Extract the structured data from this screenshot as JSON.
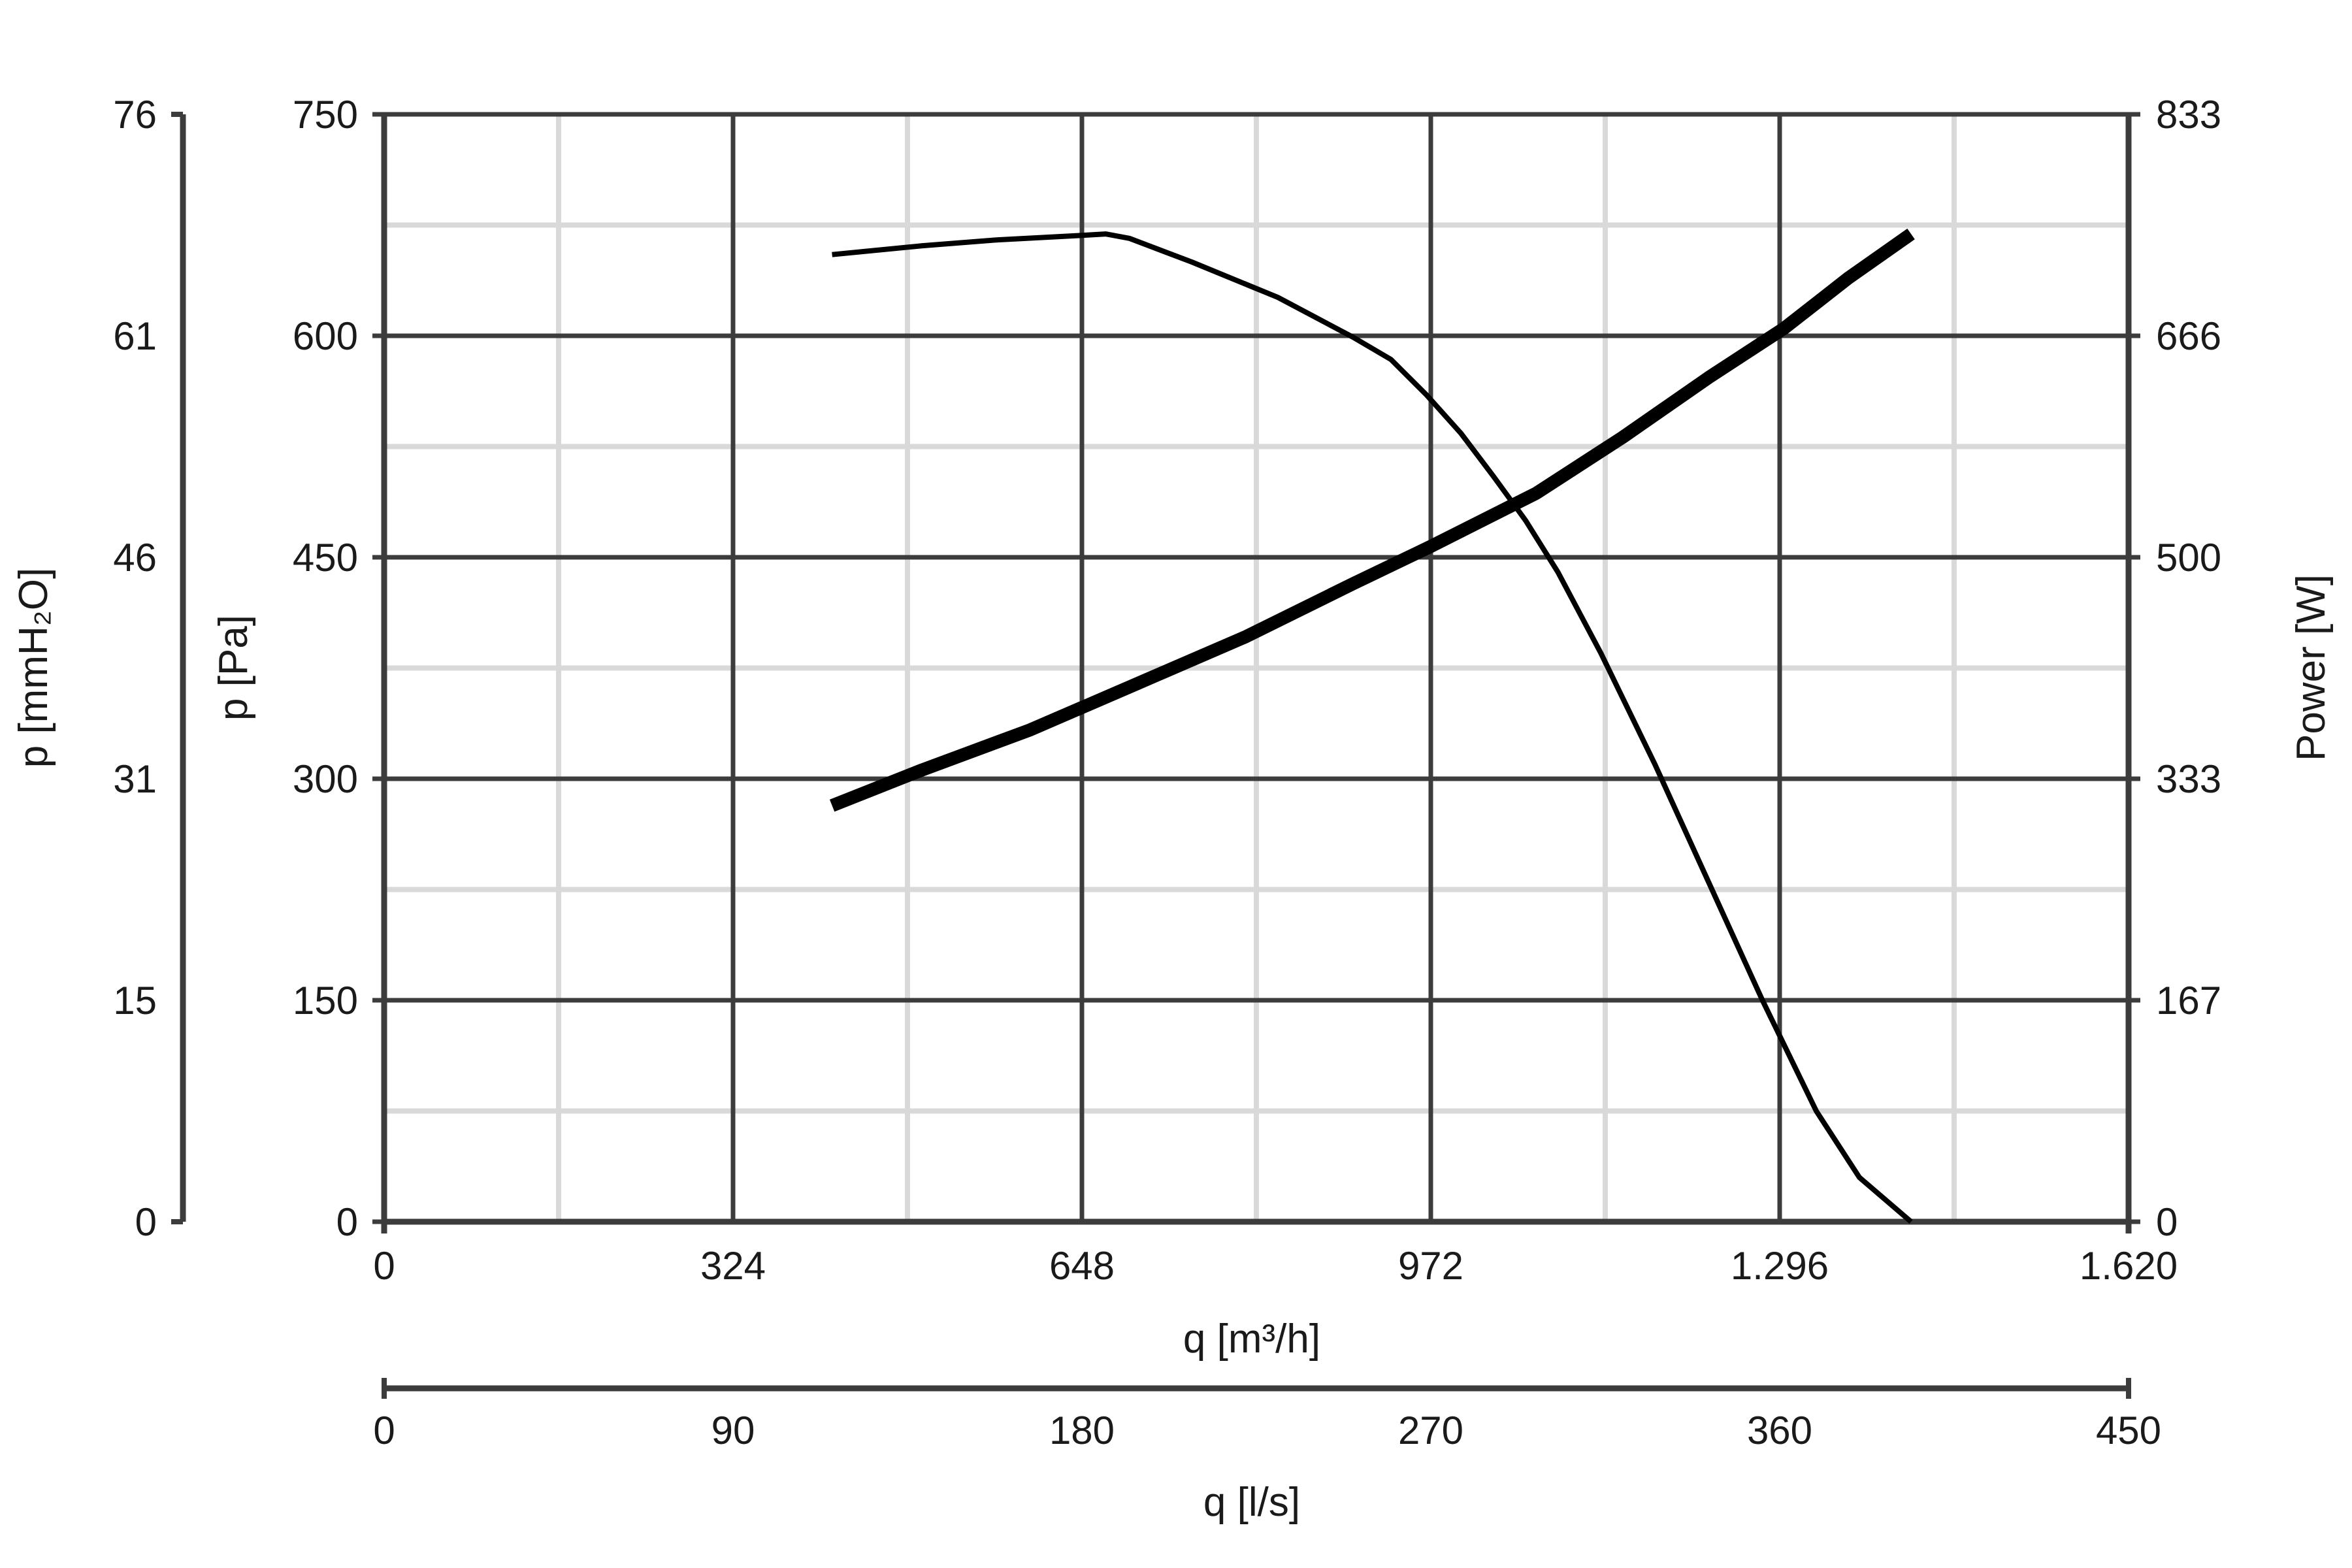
{
  "chart_data": {
    "type": "line",
    "x_axis": {
      "label": "q [m³/h]",
      "range": [
        0,
        1620
      ],
      "ticks": [
        "0",
        "324",
        "648",
        "972",
        "1.296",
        "1.620"
      ]
    },
    "x2_axis": {
      "label": "q [l/s]",
      "range": [
        0,
        450
      ],
      "ticks": [
        "0",
        "90",
        "180",
        "270",
        "360",
        "450"
      ]
    },
    "y_axis": {
      "label": "p [Pa]",
      "range": [
        0,
        750
      ],
      "ticks": [
        "0",
        "150",
        "300",
        "450",
        "600",
        "750"
      ]
    },
    "y_outer_axis": {
      "label": "p [mmH₂O]",
      "range": [
        0,
        76
      ],
      "ticks": [
        "0",
        "15",
        "31",
        "46",
        "61",
        "76"
      ]
    },
    "y2_axis": {
      "label": "Power [W]",
      "range": [
        0,
        833
      ],
      "ticks": [
        "0",
        "167",
        "333",
        "500",
        "666",
        "833"
      ]
    },
    "grid": true,
    "legend": "none",
    "series": [
      {
        "axis": "y",
        "points": [
          [
            416,
            655
          ],
          [
            500,
            661
          ],
          [
            570,
            665
          ],
          [
            648,
            668
          ],
          [
            670,
            669
          ],
          [
            692,
            666
          ],
          [
            750,
            650
          ],
          [
            830,
            626
          ],
          [
            900,
            599
          ],
          [
            935,
            584
          ],
          [
            968,
            560
          ],
          [
            1000,
            534
          ],
          [
            1030,
            505
          ],
          [
            1060,
            475
          ],
          [
            1090,
            440
          ],
          [
            1130,
            385
          ],
          [
            1180,
            310
          ],
          [
            1230,
            230
          ],
          [
            1280,
            150
          ],
          [
            1330,
            75
          ],
          [
            1370,
            30
          ],
          [
            1418,
            0
          ]
        ]
      },
      {
        "axis": "y2",
        "points": [
          [
            416,
            313
          ],
          [
            500,
            340
          ],
          [
            600,
            370
          ],
          [
            700,
            405
          ],
          [
            800,
            440
          ],
          [
            900,
            480
          ],
          [
            972,
            508
          ],
          [
            1070,
            548
          ],
          [
            1150,
            590
          ],
          [
            1230,
            635
          ],
          [
            1300,
            672
          ],
          [
            1360,
            710
          ],
          [
            1418,
            743
          ]
        ]
      }
    ],
    "colors": {
      "curve": "#000000",
      "major_grid": "#3c3c3c",
      "minor_grid": "#d9d9d9",
      "axis": "#3c3c3c"
    }
  }
}
